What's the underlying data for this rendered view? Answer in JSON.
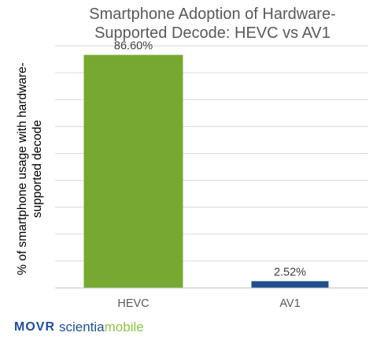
{
  "chart_data": {
    "type": "bar",
    "title": "Smartphone Adoption of Hardware-Supported Decode: HEVC vs AV1",
    "title_lines": [
      "Smartphone Adoption of Hardware-",
      "Supported Decode: HEVC vs AV1"
    ],
    "ylabel": "% of smartphone usage with hardware-supported decode",
    "ylabel_lines": [
      "% of smartphone usage with hardware-",
      "supported decode"
    ],
    "xlabel": "",
    "categories": [
      "HEVC",
      "AV1"
    ],
    "values": [
      86.6,
      2.52
    ],
    "data_labels": [
      "86.60%",
      "2.52%"
    ],
    "colors": [
      "#76a832",
      "#1f4e8c"
    ],
    "ylim": [
      0,
      90
    ],
    "grid": true,
    "y_tick_labels_shown": false
  },
  "branding": {
    "movr": "MOVR",
    "sciencia_part1": "scientia",
    "sciencia_part2": "mobile"
  }
}
